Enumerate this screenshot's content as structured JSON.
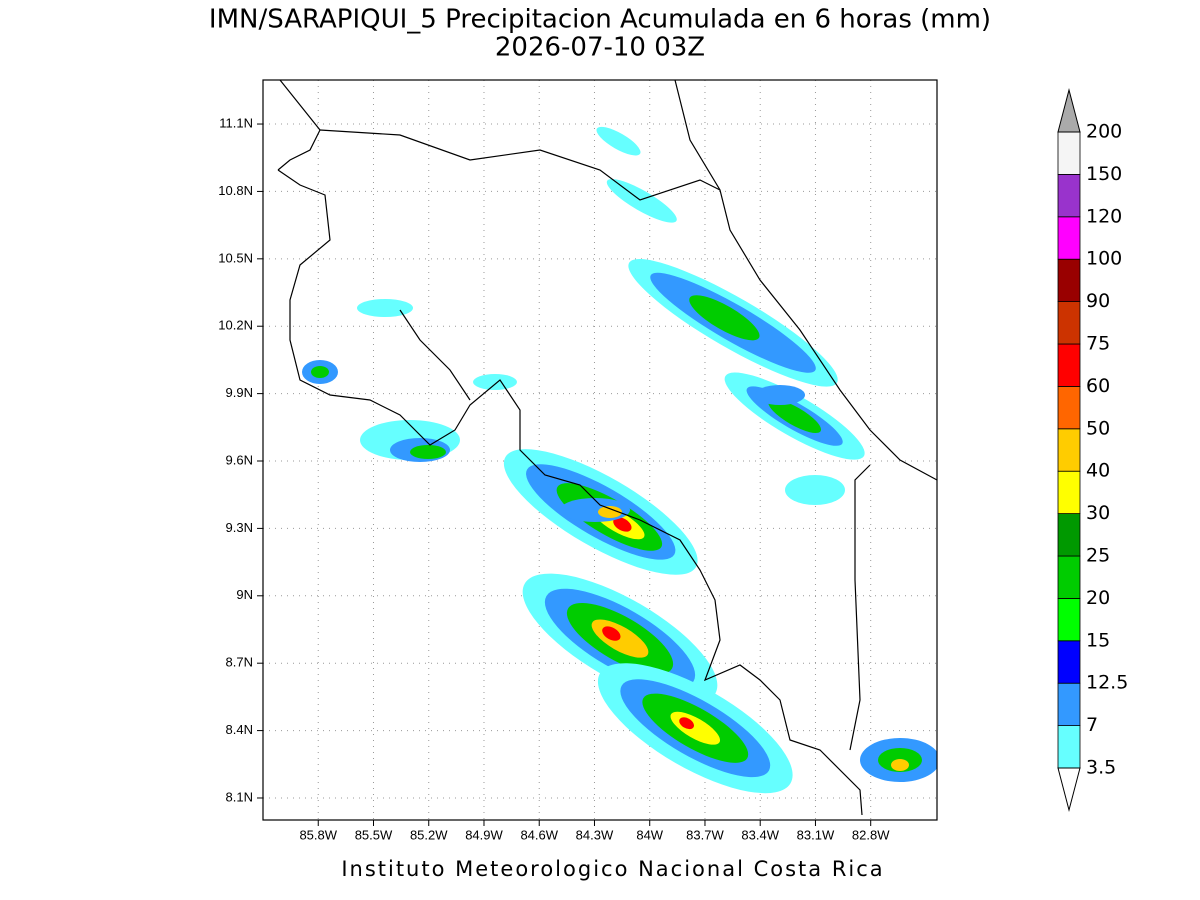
{
  "header": {
    "title": "IMN/SARAPIQUI_5 Precipitacion Acumulada en 6 horas (mm)",
    "subtitle": "2026-07-10 03Z"
  },
  "map": {
    "xlim": [
      -86.1,
      -82.44
    ],
    "ylim": [
      8.002,
      11.296
    ],
    "xticks": [
      {
        "value": -85.8,
        "label": "85.8W"
      },
      {
        "value": -85.5,
        "label": "85.5W"
      },
      {
        "value": -85.2,
        "label": "85.2W"
      },
      {
        "value": -84.9,
        "label": "84.9W"
      },
      {
        "value": -84.6,
        "label": "84.6W"
      },
      {
        "value": -84.3,
        "label": "84.3W"
      },
      {
        "value": -84,
        "label": "84W"
      },
      {
        "value": -83.7,
        "label": "83.7W"
      },
      {
        "value": -83.4,
        "label": "83.4W"
      },
      {
        "value": -83.1,
        "label": "83.1W"
      },
      {
        "value": -82.8,
        "label": "82.8W"
      }
    ],
    "yticks": [
      {
        "value": 8.1,
        "label": "8.1N"
      },
      {
        "value": 8.4,
        "label": "8.4N"
      },
      {
        "value": 8.7,
        "label": "8.7N"
      },
      {
        "value": 9,
        "label": "9N"
      },
      {
        "value": 9.3,
        "label": "9.3N"
      },
      {
        "value": 9.6,
        "label": "9.6N"
      },
      {
        "value": 9.9,
        "label": "9.9N"
      },
      {
        "value": 10.2,
        "label": "10.2N"
      },
      {
        "value": 10.5,
        "label": "10.5N"
      },
      {
        "value": 10.8,
        "label": "10.8N"
      },
      {
        "value": 11.1,
        "label": "11.1N"
      }
    ],
    "grid": true
  },
  "colorbar": {
    "levels": [
      "3.5",
      "7",
      "12.5",
      "15",
      "20",
      "25",
      "30",
      "40",
      "50",
      "60",
      "75",
      "90",
      "100",
      "120",
      "150",
      "200"
    ],
    "colors": [
      "#66ffff",
      "#3399ff",
      "#0000ff",
      "#00ff00",
      "#00cc00",
      "#009900",
      "#ffff00",
      "#ffcc00",
      "#ff6600",
      "#ff0000",
      "#cc3300",
      "#990000",
      "#ff00ff",
      "#9933cc",
      "#f5f5f5"
    ],
    "under_color": "#ffffff",
    "over_color": "#aaaaaa"
  },
  "footer": "Instituto Meteorologico Nacional Costa Rica"
}
